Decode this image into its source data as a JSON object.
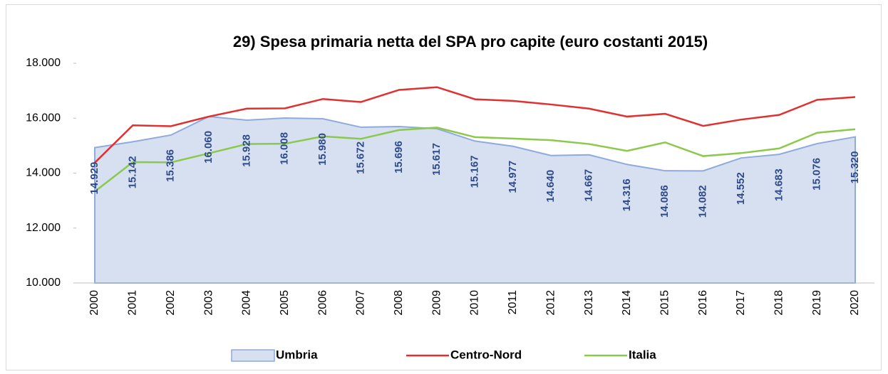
{
  "chart_data": {
    "type": "line",
    "title": "29) Spesa primaria netta del SPA pro capite (euro costanti 2015)",
    "categories": [
      "2000",
      "2001",
      "2002",
      "2003",
      "2004",
      "2005",
      "2006",
      "2007",
      "2008",
      "2009",
      "2010",
      "2011",
      "2012",
      "2013",
      "2014",
      "2015",
      "2016",
      "2017",
      "2018",
      "2019",
      "2020"
    ],
    "series": [
      {
        "name": "Umbria",
        "kind": "area",
        "color": "#d6e0f1",
        "stroke": "#8faadc",
        "values": [
          14929,
          15142,
          15386,
          16060,
          15928,
          16008,
          15980,
          15672,
          15696,
          15617,
          15167,
          14977,
          14640,
          14667,
          14316,
          14086,
          14082,
          14552,
          14683,
          15076,
          15320
        ],
        "value_labels": [
          "14.929",
          "15.142",
          "15.386",
          "16.060",
          "15.928",
          "16.008",
          "15.980",
          "15.672",
          "15.696",
          "15.617",
          "15.167",
          "14.977",
          "14.640",
          "14.667",
          "14.316",
          "14.086",
          "14.082",
          "14.552",
          "14.683",
          "15.076",
          "15.320"
        ]
      },
      {
        "name": "Centro-Nord",
        "kind": "line",
        "color": "#e03030",
        "values": [
          14380,
          15740,
          15710,
          16060,
          16350,
          16360,
          16700,
          16590,
          17030,
          17130,
          16690,
          16630,
          16500,
          16350,
          16060,
          16160,
          15720,
          15950,
          16120,
          16670,
          16770
        ]
      },
      {
        "name": "Italia",
        "kind": "line",
        "color": "#8cc84b",
        "values": [
          13330,
          14400,
          14390,
          14720,
          15060,
          15070,
          15340,
          15250,
          15570,
          15660,
          15310,
          15260,
          15200,
          15060,
          14810,
          15120,
          14620,
          14730,
          14900,
          15470,
          15600
        ]
      }
    ],
    "ylim": [
      10000,
      18000
    ],
    "yticks": [
      {
        "value": 10000,
        "label": "10.000"
      },
      {
        "value": 12000,
        "label": "12.000"
      },
      {
        "value": 14000,
        "label": "14.000"
      },
      {
        "value": 16000,
        "label": "16.000"
      },
      {
        "value": 18000,
        "label": "18.000"
      }
    ],
    "grid": false
  }
}
